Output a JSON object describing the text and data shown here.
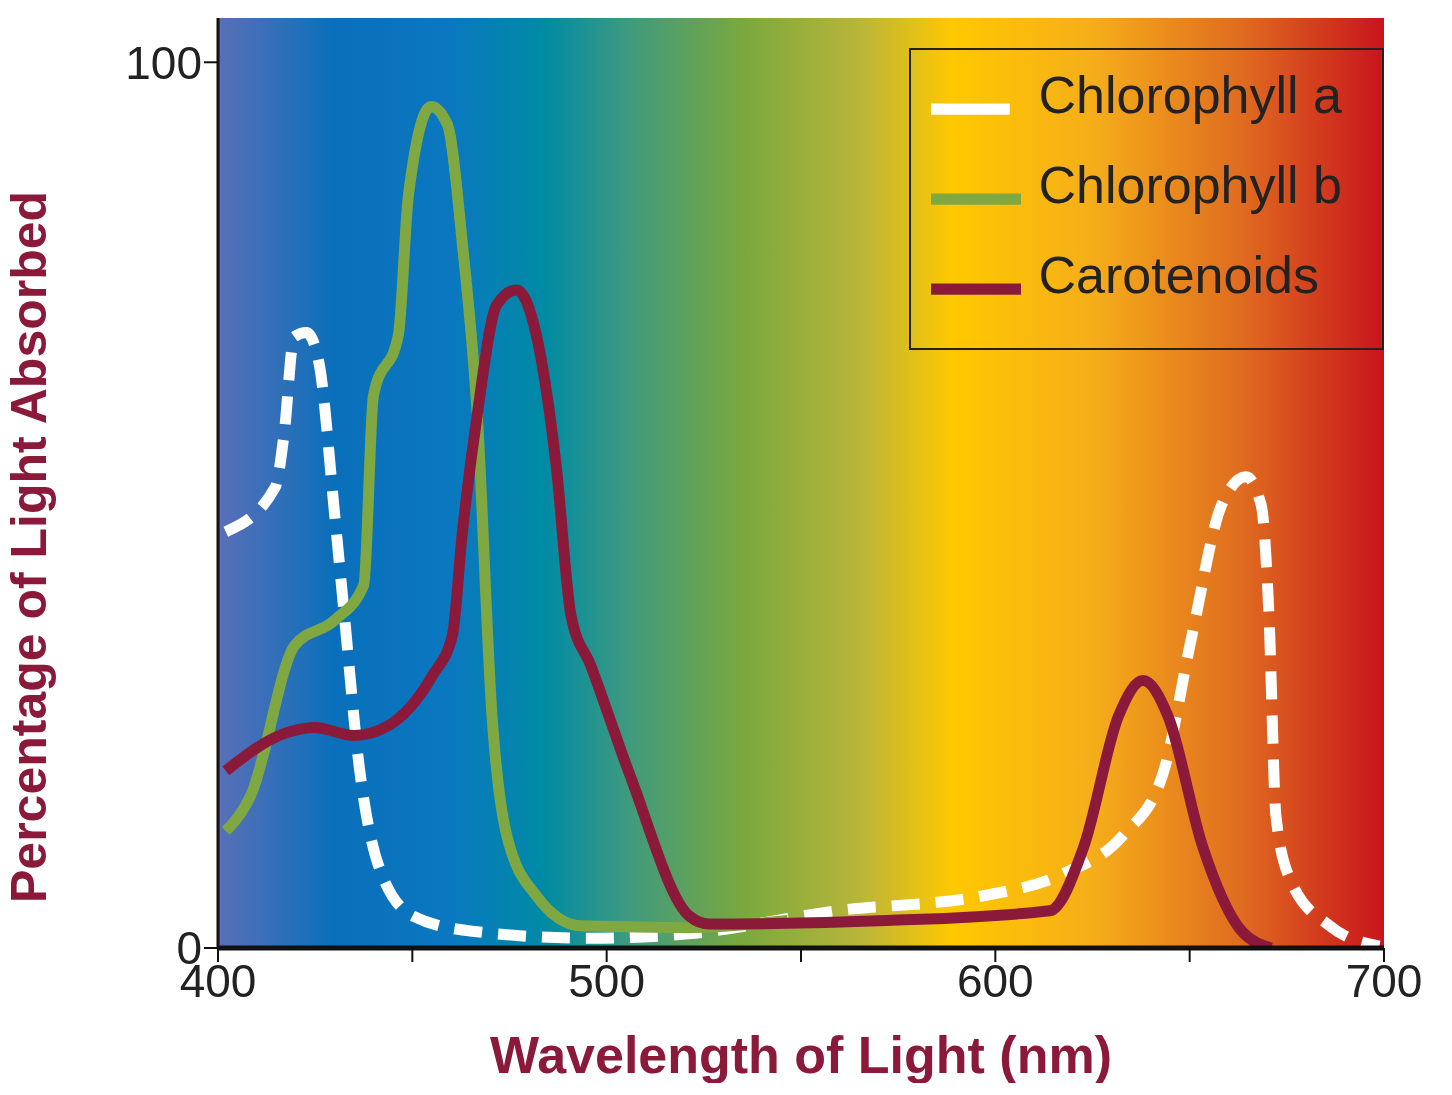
{
  "chart_data": {
    "type": "line",
    "xlabel": "Wavelength of Light (nm)",
    "ylabel": "Percentage of Light Absorbed",
    "xlim": [
      400,
      700
    ],
    "ylim": [
      0,
      105
    ],
    "xticks": [
      400,
      {
        "value": 450,
        "label": null
      },
      500,
      {
        "value": 550,
        "label": null
      },
      600,
      {
        "value": 650,
        "label": null
      },
      700
    ],
    "yticks": [
      0,
      100
    ],
    "legend": "top right",
    "marker": "none",
    "series": [
      {
        "name": "Chlorophyll a",
        "color": "#ffffff",
        "line_style": "dashed",
        "x": [
          402,
          414.7,
          417,
          419.6,
          422.8,
          426,
          430,
          432.5,
          436.3,
          441.3,
          450.2,
          465.4,
          495.9,
          521,
          559,
          597,
          617.6,
          632.8,
          643,
          650.6,
          658.2,
          664.5,
          668.4,
          670.4,
          672.2,
          676,
          686,
          698.8
        ],
        "values": [
          47,
          52,
          58,
          69,
          69.5,
          66,
          49,
          37.6,
          20.6,
          9.3,
          3.6,
          1.9,
          1.1,
          1.6,
          4.2,
          5.9,
          8.4,
          12.7,
          19.5,
          35.3,
          50,
          53.2,
          50,
          37.6,
          14.9,
          7.6,
          2.5,
          0.2
        ]
      },
      {
        "name": "Chlorophyll b",
        "color": "#7fa843",
        "line_style": "solid",
        "x": [
          402,
          408.4,
          419.8,
          430,
          437.5,
          440,
          446.4,
          449,
          454.8,
          459,
          462.9,
          466.7,
          470.5,
          474.3,
          481.9,
          493.3,
          521,
          546.6
        ],
        "values": [
          13.2,
          17.2,
          34.2,
          37,
          41,
          62.4,
          69.2,
          85,
          95,
          93,
          79.4,
          60.2,
          26.2,
          12.7,
          5.9,
          2.5,
          2.3,
          3.1
        ]
      },
      {
        "name": "Carotenoids",
        "color": "#8b1a3a",
        "line_style": "solid",
        "x": [
          402,
          417,
          424.8,
          435,
          443.8,
          455.2,
          460.3,
          462.8,
          466.7,
          471.7,
          476.8,
          481.9,
          487,
          490.8,
          495.9,
          506,
          521.3,
          526.4,
          572,
          614,
          622.8,
          631.7,
          638,
          644.4,
          653.3,
          663.4,
          671
        ],
        "values": [
          20,
          24.2,
          24.9,
          24,
          25.1,
          30.8,
          35.3,
          46.6,
          60.2,
          72.6,
          74.3,
          69.2,
          54.5,
          37.6,
          31.9,
          19.5,
          3.6,
          2.7,
          3.1,
          4.2,
          11.5,
          26.2,
          30.2,
          26.2,
          11.5,
          1.9,
          0
        ]
      }
    ]
  }
}
